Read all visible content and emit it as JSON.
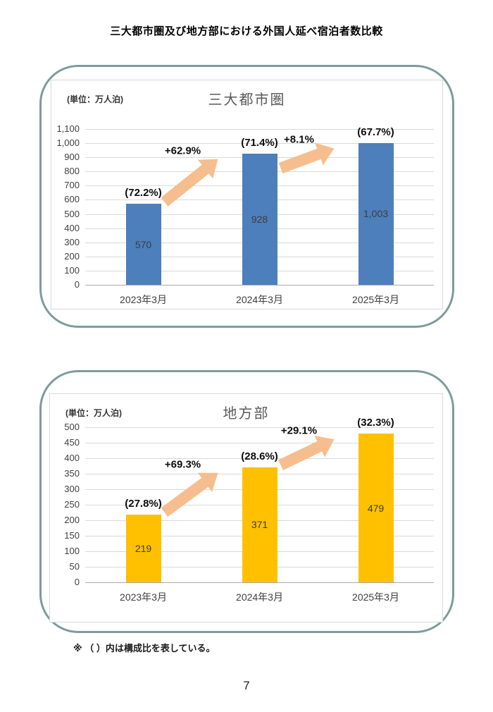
{
  "page": {
    "title": "三大都市圏及び地方部における外国人延べ宿泊者数比較",
    "footnote": "※ （ ）内は構成比を表している。",
    "page_number": "7"
  },
  "colors": {
    "metro_bar": "#4C7FBC",
    "regional_bar": "#FFC000",
    "arrow": "#F6BE8E",
    "card_border": "#7D9C9C",
    "gridline": "#D9D9D9",
    "axis_text": "#404040"
  },
  "chart_data": [
    {
      "type": "bar",
      "title": "三大都市圏",
      "unit_label": "(単位：万人泊)",
      "categories": [
        "2023年3月",
        "2024年3月",
        "2025年3月"
      ],
      "values": [
        570,
        928,
        1003
      ],
      "value_labels": [
        "570",
        "928",
        "1,003"
      ],
      "share_labels": [
        "(72.2%)",
        "(71.4%)",
        "(67.7%)"
      ],
      "arrows": [
        {
          "from": 0,
          "to": 1,
          "label": "+62.9%"
        },
        {
          "from": 1,
          "to": 2,
          "label": "+8.1%"
        }
      ],
      "ylim": [
        0,
        1100
      ],
      "ytick_step": 100,
      "yticks": [
        "1,100",
        "1,000",
        "900",
        "800",
        "700",
        "600",
        "500",
        "400",
        "300",
        "200",
        "100",
        "0"
      ],
      "bar_color_key": "metro_bar",
      "grid": true,
      "legend": "none"
    },
    {
      "type": "bar",
      "title": "地方部",
      "unit_label": "(単位：万人泊)",
      "categories": [
        "2023年3月",
        "2024年3月",
        "2025年3月"
      ],
      "values": [
        219,
        371,
        479
      ],
      "value_labels": [
        "219",
        "371",
        "479"
      ],
      "share_labels": [
        "(27.8%)",
        "(28.6%)",
        "(32.3%)"
      ],
      "arrows": [
        {
          "from": 0,
          "to": 1,
          "label": "+69.3%"
        },
        {
          "from": 1,
          "to": 2,
          "label": "+29.1%"
        }
      ],
      "ylim": [
        0,
        500
      ],
      "ytick_step": 50,
      "yticks": [
        "500",
        "450",
        "400",
        "350",
        "300",
        "250",
        "200",
        "150",
        "100",
        "50",
        "0"
      ],
      "bar_color_key": "regional_bar",
      "grid": true,
      "legend": "none"
    }
  ]
}
